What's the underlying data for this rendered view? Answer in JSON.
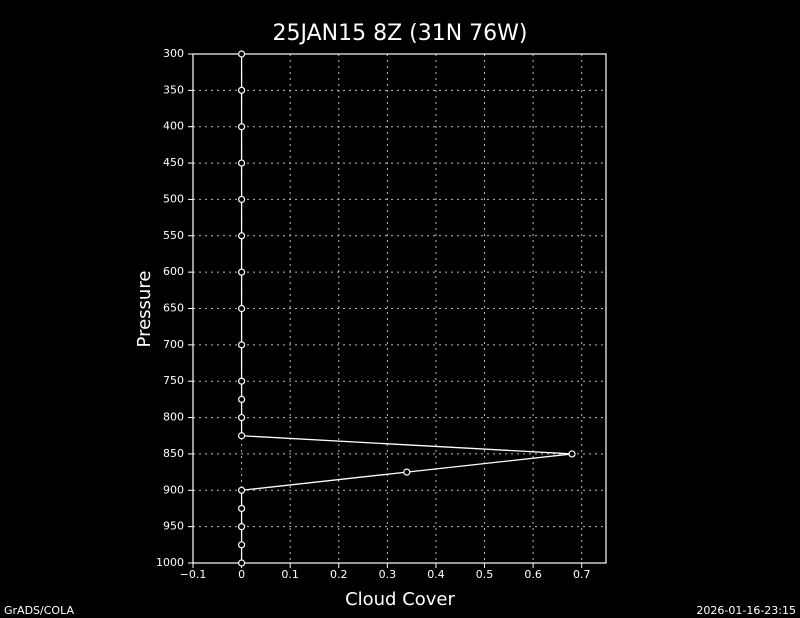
{
  "chart_data": {
    "type": "line",
    "title": "25JAN15 8Z (31N 76W)",
    "xlabel": "Cloud Cover",
    "ylabel": "Pressure",
    "y": [
      300,
      350,
      400,
      450,
      500,
      550,
      600,
      650,
      700,
      750,
      775,
      800,
      825,
      850,
      875,
      900,
      925,
      950,
      975,
      1000
    ],
    "values": [
      0,
      0,
      0,
      0,
      0,
      0,
      0,
      0,
      0,
      0,
      0,
      0,
      0,
      0.68,
      0.34,
      0,
      0,
      0,
      0,
      0
    ],
    "color": "#ffffff",
    "xlim": [
      -0.1,
      0.75
    ],
    "xticks": [
      {
        "value": -0.1,
        "label": "−0.1"
      },
      0,
      0.1,
      0.2,
      0.3,
      0.4,
      0.5,
      0.6,
      0.7
    ],
    "ylim": [
      1000,
      300
    ],
    "yticks": [
      300,
      350,
      400,
      450,
      500,
      550,
      600,
      650,
      700,
      750,
      800,
      850,
      900,
      950,
      1000
    ],
    "grid": true,
    "annotations": [
      "GrADS/COLA",
      "2026-01-16-23:15"
    ]
  }
}
